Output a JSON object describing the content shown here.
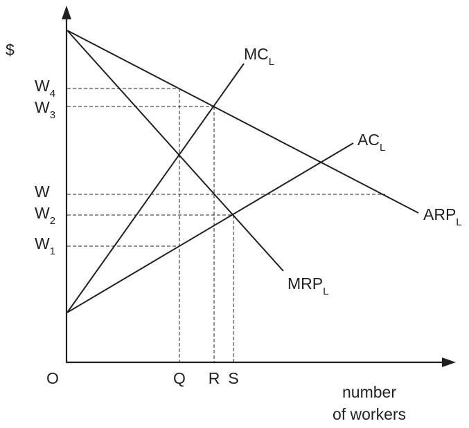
{
  "axes": {
    "y_label": "$",
    "origin_label": "O",
    "x_label_line1": "number",
    "x_label_line2": "of workers"
  },
  "wage_levels": {
    "w4": {
      "main": "W",
      "sub": "4"
    },
    "w3": {
      "main": "W",
      "sub": "3"
    },
    "w": {
      "main": "W",
      "sub": ""
    },
    "w2": {
      "main": "W",
      "sub": "2"
    },
    "w1": {
      "main": "W",
      "sub": "1"
    }
  },
  "quantities": {
    "q": "Q",
    "r": "R",
    "s": "S"
  },
  "curves": {
    "mcl": {
      "main": "MC",
      "sub": "L"
    },
    "acl": {
      "main": "AC",
      "sub": "L"
    },
    "arpl": {
      "main": "ARP",
      "sub": "L"
    },
    "mrpl": {
      "main": "MRP",
      "sub": "L"
    }
  },
  "colors": {
    "ink": "#231f20",
    "background": "#ffffff"
  }
}
